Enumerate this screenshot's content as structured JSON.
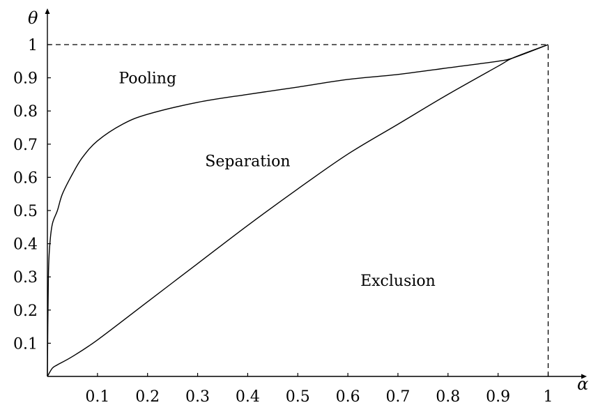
{
  "chart_data": {
    "type": "line",
    "title": "",
    "xlabel": "α",
    "ylabel": "θ",
    "xlim": [
      0,
      1.08
    ],
    "ylim": [
      0,
      1.04
    ],
    "grid": false,
    "x_ticks": [
      0.1,
      0.2,
      0.3,
      0.4,
      0.5,
      0.6,
      0.7,
      0.8,
      0.9,
      1
    ],
    "x_tick_labels": [
      "0.1",
      "0.2",
      "0.3",
      "0.4",
      "0.5",
      "0.6",
      "0.7",
      "0.8",
      "0.9",
      "1"
    ],
    "y_ticks": [
      0.1,
      0.2,
      0.3,
      0.4,
      0.5,
      0.6,
      0.7,
      0.8,
      0.9,
      1
    ],
    "y_tick_labels": [
      "0.1",
      "0.2",
      "0.3",
      "0.4",
      "0.5",
      "0.6",
      "0.7",
      "0.8",
      "0.9",
      "1"
    ],
    "series": [
      {
        "x": [
          0,
          0.002,
          0.005,
          0.01,
          0.02,
          0.03,
          0.05,
          0.07,
          0.1,
          0.15,
          0.2,
          0.3,
          0.4,
          0.5,
          0.6,
          0.7,
          0.8,
          0.9,
          0.93,
          1.0
        ],
        "y": [
          0,
          0.3,
          0.4,
          0.46,
          0.5,
          0.55,
          0.61,
          0.66,
          0.71,
          0.76,
          0.79,
          0.826,
          0.85,
          0.872,
          0.895,
          0.91,
          0.93,
          0.95,
          0.96,
          1.0
        ]
      },
      {
        "x": [
          0,
          0.01,
          0.02,
          0.05,
          0.1,
          0.2,
          0.3,
          0.4,
          0.5,
          0.6,
          0.7,
          0.8,
          0.9,
          0.93,
          1.0
        ],
        "y": [
          0,
          0.025,
          0.035,
          0.06,
          0.11,
          0.225,
          0.34,
          0.455,
          0.565,
          0.67,
          0.76,
          0.85,
          0.935,
          0.96,
          1.0
        ]
      }
    ],
    "reference_lines": [
      {
        "kind": "horizontal",
        "y": 1,
        "x_from": 0,
        "x_to": 1,
        "style": "dashed"
      },
      {
        "kind": "vertical",
        "x": 1,
        "y_from": 0,
        "y_to": 1,
        "style": "dashed"
      }
    ],
    "annotations": [
      {
        "text": "Pooling",
        "x": 0.2,
        "y": 0.9
      },
      {
        "text": "Separation",
        "x": 0.4,
        "y": 0.65
      },
      {
        "text": "Exclusion",
        "x": 0.7,
        "y": 0.29
      }
    ]
  }
}
